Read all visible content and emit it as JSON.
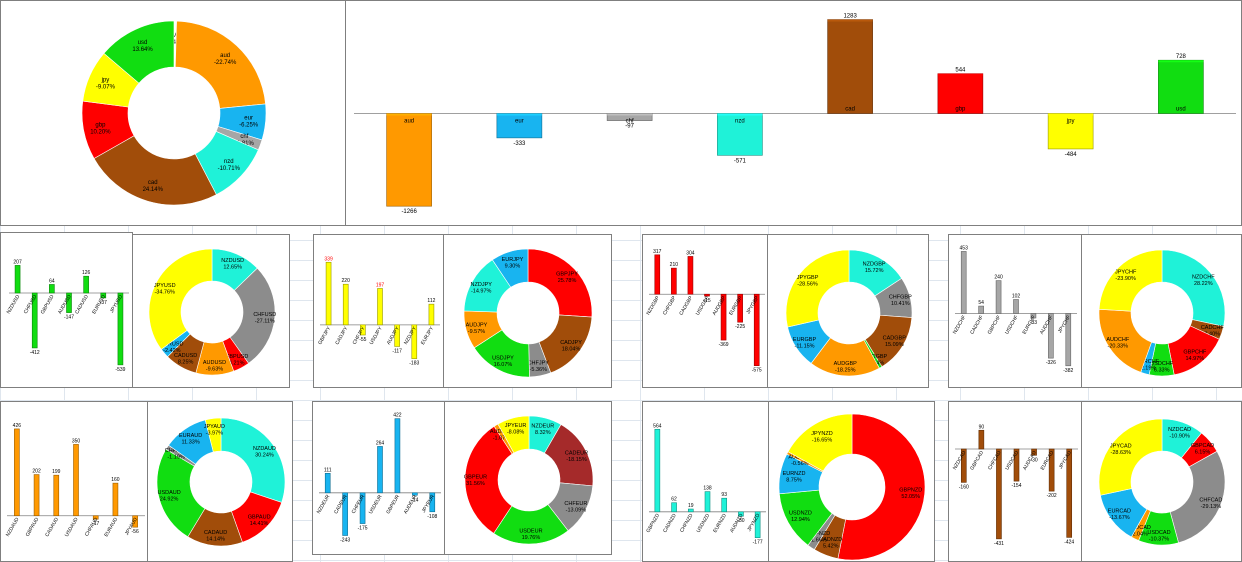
{
  "colors": {
    "aud": "#ff9900",
    "eur": "#18b4f0",
    "chf": "#a6a6a6",
    "nzd": "#1ff2d8",
    "cad": "#a14d0a",
    "gbp": "#ff0000",
    "jpy": "#ffff00",
    "usd": "#11dd11",
    "avg": "#c00000"
  },
  "chart_data": [
    {
      "id": "main-pie",
      "type": "pie",
      "slices": [
        {
          "label": "AVG",
          "pct": "-0.45%",
          "value": 0.45,
          "color": "#ffffff"
        },
        {
          "label": "aud",
          "pct": "-22.74%",
          "value": 22.74,
          "color": "#ff9900"
        },
        {
          "label": "eur",
          "pct": "-6.25%",
          "value": 6.25,
          "color": "#18b4f0"
        },
        {
          "label": "chf",
          "pct": "-1.81%",
          "value": 1.81,
          "color": "#a6a6a6"
        },
        {
          "label": "nzd",
          "pct": "-10.71%",
          "value": 10.71,
          "color": "#1ff2d8"
        },
        {
          "label": "cad",
          "pct": "24.14%",
          "value": 24.14,
          "color": "#a14d0a"
        },
        {
          "label": "gbp",
          "pct": "10.20%",
          "value": 10.2,
          "color": "#ff0000"
        },
        {
          "label": "jpy",
          "pct": "-9.07%",
          "value": 9.07,
          "color": "#ffff00"
        },
        {
          "label": "usd",
          "pct": "13.64%",
          "value": 13.64,
          "color": "#11dd11"
        }
      ]
    },
    {
      "id": "main-bar",
      "type": "bar",
      "categories": [
        "aud",
        "eur",
        "chf",
        "nzd",
        "cad",
        "gbp",
        "jpy",
        "usd"
      ],
      "values": [
        -1266,
        -333,
        -97,
        -571,
        1283,
        544,
        -484,
        728
      ],
      "colors": [
        "#ff9900",
        "#18b4f0",
        "#a6a6a6",
        "#1ff2d8",
        "#a14d0a",
        "#ff0000",
        "#ffff00",
        "#11dd11"
      ],
      "ylim": [
        -1400,
        1400
      ]
    },
    {
      "id": "usd-bar",
      "type": "bar",
      "categories": [
        "NZDUSD",
        "CHFUSD",
        "GBPUSD",
        "AUDUSD",
        "CADUSD",
        "EURUSD",
        "JPYUSD"
      ],
      "values": [
        207,
        -412,
        64,
        -147,
        126,
        -37,
        -539
      ],
      "color": "#11dd11",
      "ylim": [
        -600,
        300
      ]
    },
    {
      "id": "usd-pie",
      "type": "pie",
      "slices": [
        {
          "label": "NZDUSD",
          "pct": "12.65%",
          "value": 12.65,
          "color": "#1ff2d8"
        },
        {
          "label": "CHFUSD",
          "pct": "-27.11%",
          "value": 27.11,
          "color": "#8c8c8c"
        },
        {
          "label": "GBPUSD",
          "pct": "4.21%",
          "value": 4.21,
          "color": "#ff0000"
        },
        {
          "label": "AUDUSD",
          "pct": "-9.63%",
          "value": 9.63,
          "color": "#ff9900"
        },
        {
          "label": "CADUSD",
          "pct": "8.25%",
          "value": 8.25,
          "color": "#a14d0a"
        },
        {
          "label": "EURUSD",
          "pct": "-2.42%",
          "value": 2.42,
          "color": "#18b4f0"
        },
        {
          "label": "JPYUSD",
          "pct": "-34.76%",
          "value": 34.76,
          "color": "#ffff00"
        }
      ]
    },
    {
      "id": "jpy-bar",
      "type": "bar",
      "categories": [
        "GBPJPY",
        "CADJPY",
        "CHFJPY",
        "USDJPY",
        "AUDJPY",
        "NZDJPY",
        "EURJPY"
      ],
      "values": [
        339,
        220,
        -55,
        197,
        -117,
        -183,
        112
      ],
      "color": "#ffff00",
      "ylim": [
        -250,
        400
      ]
    },
    {
      "id": "jpy-pie",
      "type": "pie",
      "slices": [
        {
          "label": "GBPJPY",
          "pct": "25.78%",
          "value": 25.78,
          "color": "#ff0000"
        },
        {
          "label": "CADJPY",
          "pct": "18.04%",
          "value": 18.04,
          "color": "#a14d0a"
        },
        {
          "label": "CHFJPY",
          "pct": "-5.36%",
          "value": 5.36,
          "color": "#8c8c8c"
        },
        {
          "label": "USDJPY",
          "pct": "16.07%",
          "value": 16.07,
          "color": "#11dd11"
        },
        {
          "label": "AUDJPY",
          "pct": "-9.57%",
          "value": 9.57,
          "color": "#ff9900"
        },
        {
          "label": "NZDJPY",
          "pct": "-14.97%",
          "value": 14.97,
          "color": "#1ff2d8"
        },
        {
          "label": "EURJPY",
          "pct": "9.30%",
          "value": 9.3,
          "color": "#18b4f0"
        }
      ]
    },
    {
      "id": "gbp-bar",
      "type": "bar",
      "categories": [
        "NZDGBP",
        "CHFGBP",
        "CADGBP",
        "USDGBP",
        "AUDGBP",
        "EURGBP",
        "JPYGBP"
      ],
      "values": [
        317,
        210,
        304,
        -15,
        -369,
        -225,
        -575
      ],
      "color": "#ff0000",
      "ylim": [
        -650,
        380
      ]
    },
    {
      "id": "gbp-pie",
      "type": "pie",
      "slices": [
        {
          "label": "NZDGBP",
          "pct": "15.72%",
          "value": 15.72,
          "color": "#1ff2d8"
        },
        {
          "label": "CHFGBP",
          "pct": "10.41%",
          "value": 10.41,
          "color": "#8c8c8c"
        },
        {
          "label": "CADGBP",
          "pct": "15.09%",
          "value": 15.09,
          "color": "#a14d0a"
        },
        {
          "label": "USDGBP",
          "pct": "-0.74%",
          "value": 0.74,
          "color": "#11dd11"
        },
        {
          "label": "AUDGBP",
          "pct": "-18.25%",
          "value": 18.25,
          "color": "#ff9900"
        },
        {
          "label": "EURGBP",
          "pct": "-11.15%",
          "value": 11.15,
          "color": "#18b4f0"
        },
        {
          "label": "JPYGBP",
          "pct": "-28.56%",
          "value": 28.56,
          "color": "#ffff00"
        }
      ]
    },
    {
      "id": "chf-bar",
      "type": "bar",
      "categories": [
        "NZDCHF",
        "CADCHF",
        "GBPCHF",
        "USDCHF",
        "EURCHF",
        "AUDCHF",
        "JPYCHF"
      ],
      "values": [
        453,
        54,
        240,
        102,
        -33,
        -326,
        -382
      ],
      "color": "#a6a6a6",
      "ylim": [
        -420,
        500
      ]
    },
    {
      "id": "chf-pie",
      "type": "pie",
      "slices": [
        {
          "label": "NZDCHF",
          "pct": "28.22%",
          "value": 28.22,
          "color": "#1ff2d8"
        },
        {
          "label": "CADCHF",
          "pct": "3.40%",
          "value": 3.4,
          "color": "#a14d0a"
        },
        {
          "label": "GBPCHF",
          "pct": "14.97%",
          "value": 14.97,
          "color": "#ff0000"
        },
        {
          "label": "USDCHF",
          "pct": "6.33%",
          "value": 6.33,
          "color": "#11dd11"
        },
        {
          "label": "EURCHF",
          "pct": "-2.19%",
          "value": 2.19,
          "color": "#18b4f0"
        },
        {
          "label": "AUDCHF",
          "pct": "-20.33%",
          "value": 20.33,
          "color": "#ff9900"
        },
        {
          "label": "JPYCHF",
          "pct": "-23.90%",
          "value": 23.9,
          "color": "#ffff00"
        }
      ]
    },
    {
      "id": "aud-bar",
      "type": "bar",
      "categories": [
        "NZDAUD",
        "GBPAUD",
        "CADAUD",
        "USDAUD",
        "CHFAUD",
        "EURAUD",
        "JPYAUD"
      ],
      "values": [
        426,
        202,
        199,
        350,
        -17,
        160,
        -56
      ],
      "color": "#ff9900",
      "ylim": [
        -70,
        460
      ]
    },
    {
      "id": "aud-pie",
      "type": "pie",
      "slices": [
        {
          "label": "NZDAUD",
          "pct": "30.24%",
          "value": 30.24,
          "color": "#1ff2d8"
        },
        {
          "label": "GBPAUD",
          "pct": "14.41%",
          "value": 14.41,
          "color": "#ff0000"
        },
        {
          "label": "CADAUD",
          "pct": "14.14%",
          "value": 14.14,
          "color": "#a14d0a"
        },
        {
          "label": "USDAUD",
          "pct": "24.92%",
          "value": 24.92,
          "color": "#11dd11"
        },
        {
          "label": "CHFAUD",
          "pct": "-1.19%",
          "value": 1.19,
          "color": "#8c8c8c"
        },
        {
          "label": "EURAUD",
          "pct": "11.33%",
          "value": 11.33,
          "color": "#18b4f0"
        },
        {
          "label": "JPYAUD",
          "pct": "-3.97%",
          "value": 3.97,
          "color": "#ffff00"
        }
      ]
    },
    {
      "id": "eur-bar",
      "type": "bar",
      "categories": [
        "NZDEUR",
        "CADEUR",
        "CHFEUR",
        "USDEUR",
        "GBPEUR",
        "AUDEUR",
        "JPYEUR"
      ],
      "values": [
        111,
        -243,
        -175,
        264,
        422,
        -14,
        -108
      ],
      "color": "#18b4f0",
      "ylim": [
        -280,
        460
      ]
    },
    {
      "id": "eur-pie",
      "type": "pie",
      "slices": [
        {
          "label": "NZDEUR",
          "pct": "8.32%",
          "value": 8.32,
          "color": "#1ff2d8"
        },
        {
          "label": "CADEUR",
          "pct": "-18.15%",
          "value": 18.15,
          "color": "#a52a2a"
        },
        {
          "label": "CHFEUR",
          "pct": "-13.09%",
          "value": 13.09,
          "color": "#8c8c8c"
        },
        {
          "label": "USDEUR",
          "pct": "19.76%",
          "value": 19.76,
          "color": "#11dd11"
        },
        {
          "label": "GBPEUR",
          "pct": "31.56%",
          "value": 31.56,
          "color": "#ff0000"
        },
        {
          "label": "AUDEUR",
          "pct": "-1.07%",
          "value": 1.07,
          "color": "#ff9900"
        },
        {
          "label": "JPYEUR",
          "pct": "-8.08%",
          "value": 8.08,
          "color": "#ffff00"
        }
      ]
    },
    {
      "id": "nzd-bar",
      "type": "bar",
      "categories": [
        "GBPNZD",
        "CADNZD",
        "CHFNZD",
        "USDNZD",
        "EURNZD",
        "AUDNZD",
        "JPYNZD"
      ],
      "values": [
        564,
        62,
        19,
        138,
        93,
        -30,
        -177
      ],
      "color": "#1ff2d8",
      "ylim": [
        -220,
        600
      ]
    },
    {
      "id": "nzd-pie",
      "type": "pie",
      "slices": [
        {
          "label": "GBPNZD",
          "pct": "52.05%",
          "value": 52.05,
          "color": "#ff0000"
        },
        {
          "label": "CADNZD",
          "pct": "5.42%",
          "value": 5.42,
          "color": "#a14d0a"
        },
        {
          "label": "CHFNZD",
          "pct": "1.66%",
          "value": 1.66,
          "color": "#8c8c8c"
        },
        {
          "label": "USDNZD",
          "pct": "12.94%",
          "value": 12.94,
          "color": "#11dd11"
        },
        {
          "label": "EURNZD",
          "pct": "8.75%",
          "value": 8.75,
          "color": "#18b4f0"
        },
        {
          "label": "AUDNZD",
          "pct": "-0.56%",
          "value": 0.56,
          "color": "#ff9900"
        },
        {
          "label": "JPYNZD",
          "pct": "-16.65%",
          "value": 16.65,
          "color": "#ffff00"
        }
      ]
    },
    {
      "id": "cad-bar",
      "type": "bar",
      "categories": [
        "NZDCAD",
        "GBPCAD",
        "CHFCAD",
        "USDCAD",
        "AUDCAD",
        "EURCAD",
        "JPYCAD"
      ],
      "values": [
        -160,
        90,
        -431,
        -154,
        -30,
        -202,
        -424
      ],
      "color": "#a14d0a",
      "ylim": [
        -470,
        120
      ]
    },
    {
      "id": "cad-pie",
      "type": "pie",
      "slices": [
        {
          "label": "NZDCAD",
          "pct": "-10.90%",
          "value": 10.9,
          "color": "#1ff2d8"
        },
        {
          "label": "GBPCAD",
          "pct": "6.15%",
          "value": 6.15,
          "color": "#ff0000"
        },
        {
          "label": "CHFCAD",
          "pct": "-29.13%",
          "value": 29.13,
          "color": "#8c8c8c"
        },
        {
          "label": "USDCAD",
          "pct": "-10.37%",
          "value": 10.37,
          "color": "#11dd11"
        },
        {
          "label": "AUDCAD",
          "pct": "-2.04%",
          "value": 2.04,
          "color": "#ff9900"
        },
        {
          "label": "EURCAD",
          "pct": "-13.67%",
          "value": 13.67,
          "color": "#18b4f0"
        },
        {
          "label": "JPYCAD",
          "pct": "-28.63%",
          "value": 28.63,
          "color": "#ffff00"
        }
      ]
    }
  ]
}
